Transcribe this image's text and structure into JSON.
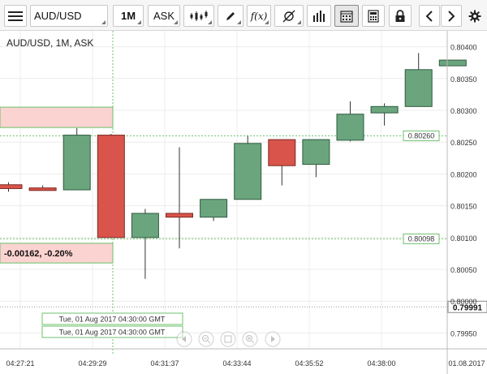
{
  "toolbar": {
    "symbol": "AUD/USD",
    "timeframe": "1M",
    "price_side": "ASK",
    "fx_label": "f(x)",
    "icons": [
      "hamburger-menu-icon",
      "candlestick-type-icon",
      "pencil-icon",
      "indicator-fx-icon",
      "crosshair-cursor-icon",
      "bar-chart-icon",
      "calendar-icon",
      "calculator-icon",
      "lock-icon",
      "chevron-left-icon",
      "chevron-right-icon",
      "gear-icon"
    ]
  },
  "chart_title": "AUD/USD, 1M, ASK",
  "info_box": {
    "change_text": "-0.00162, -0.20%"
  },
  "crosshair": {
    "time_label_1": "Tue, 01 Aug 2017 04:30:00 GMT",
    "time_label_2": "Tue, 01 Aug 2017 04:30:00 GMT"
  },
  "colors": {
    "up": "#6aa57e",
    "down": "#d9544a",
    "up_border": "#2f5a3e",
    "down_border": "#7a2a22",
    "guide_line": "#6cc06c",
    "highlight_fill": "#fbd3d0",
    "highlight_border": "#6cc06c",
    "current_price_bg": "#ffffff"
  },
  "chart_data": {
    "type": "candlestick",
    "title": "AUD/USD, 1M, ASK",
    "ylim": [
      0.79925,
      0.80425
    ],
    "y_ticks": [
      "0.80400",
      "0.80350",
      "0.80300",
      "0.80250",
      "0.80200",
      "0.80150",
      "0.80100",
      "0.80050",
      "0.80000",
      "0.79950"
    ],
    "x_ticks": [
      "04:27:21",
      "04:29:29",
      "04:31:37",
      "04:33:44",
      "04:35:52",
      "04:38:00",
      "01.08.2017"
    ],
    "price_labels": [
      "0.80260",
      "0.80098"
    ],
    "current_price": "0.79991",
    "candles": [
      {
        "index": 0,
        "open": 0.80183,
        "high": 0.80187,
        "low": 0.80172,
        "close": 0.80177,
        "partial": true
      },
      {
        "index": 1,
        "open": 0.80178,
        "high": 0.80182,
        "low": 0.80175,
        "close": 0.80174
      },
      {
        "index": 2,
        "open": 0.80175,
        "high": 0.80272,
        "low": 0.80175,
        "close": 0.80261
      },
      {
        "index": 3,
        "open": 0.80261,
        "high": 0.80263,
        "low": 0.801,
        "close": 0.801
      },
      {
        "index": 4,
        "open": 0.801,
        "high": 0.80145,
        "low": 0.80035,
        "close": 0.80138
      },
      {
        "index": 5,
        "open": 0.80138,
        "high": 0.80242,
        "low": 0.80083,
        "close": 0.80132
      },
      {
        "index": 6,
        "open": 0.80132,
        "high": 0.8016,
        "low": 0.80126,
        "close": 0.8016
      },
      {
        "index": 7,
        "open": 0.8016,
        "high": 0.8026,
        "low": 0.8016,
        "close": 0.80248
      },
      {
        "index": 8,
        "open": 0.80254,
        "high": 0.80254,
        "low": 0.80182,
        "close": 0.80213
      },
      {
        "index": 9,
        "open": 0.80215,
        "high": 0.80254,
        "low": 0.80195,
        "close": 0.80254
      },
      {
        "index": 10,
        "open": 0.80253,
        "high": 0.80314,
        "low": 0.80251,
        "close": 0.80294
      },
      {
        "index": 11,
        "open": 0.80296,
        "high": 0.80311,
        "low": 0.80276,
        "close": 0.80306
      },
      {
        "index": 12,
        "open": 0.80306,
        "high": 0.8039,
        "low": 0.80306,
        "close": 0.80364
      },
      {
        "index": 13,
        "open": 0.8037,
        "high": 0.80379,
        "low": 0.8037,
        "close": 0.80379,
        "partial": true
      }
    ]
  }
}
